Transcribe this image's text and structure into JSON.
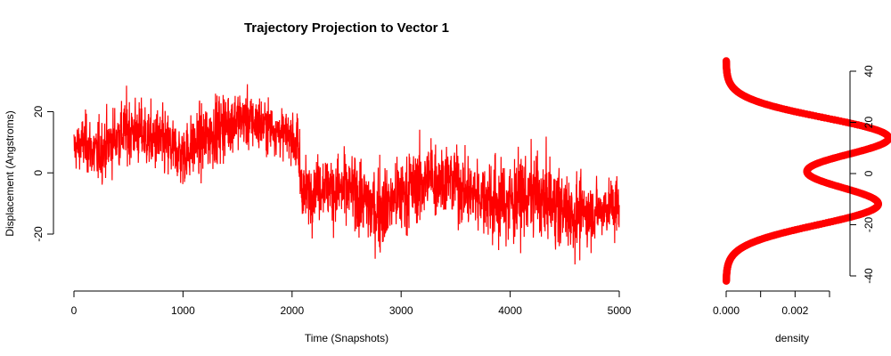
{
  "chart_data": [
    {
      "type": "line",
      "title": "Trajectory Projection to Vector 1",
      "xlabel": "Time (Snapshots)",
      "ylabel": "Displacement (Angstroms)",
      "xlim": [
        0,
        5000
      ],
      "ylim": [
        -36,
        37
      ],
      "xticks": [
        0,
        1000,
        2000,
        3000,
        4000,
        5000
      ],
      "xtick_labels": [
        "0",
        "1000",
        "2000",
        "3000",
        "4000",
        "5000"
      ],
      "yticks": [
        -20,
        0,
        20
      ],
      "ytick_labels": [
        "-20",
        "0",
        "20"
      ],
      "grid": false,
      "legend": "none",
      "color": "#ff0000",
      "series": [
        {
          "x": [
            0,
            100,
            200,
            300,
            400,
            500,
            600,
            700,
            800,
            900,
            1000,
            1100,
            1200,
            1300,
            1400,
            1500,
            1600,
            1700,
            1800,
            1900,
            2000,
            2050,
            2100,
            2200,
            2300,
            2400,
            2500,
            2600,
            2700,
            2800,
            2900,
            3000,
            3100,
            3200,
            3300,
            3400,
            3500,
            3600,
            3700,
            3800,
            3900,
            4000,
            4100,
            4200,
            4300,
            4400,
            4500,
            4600,
            4700,
            4800,
            4900,
            5000
          ],
          "y": [
            8,
            10,
            6,
            9,
            12,
            14,
            13,
            11,
            10,
            8,
            6,
            9,
            11,
            14,
            16,
            18,
            17,
            16,
            15,
            13,
            12,
            8,
            -7,
            -5,
            -4,
            -6,
            -5,
            -7,
            -10,
            -12,
            -9,
            -7,
            -5,
            -3,
            -1,
            -2,
            -3,
            -6,
            -7,
            -8,
            -10,
            -9,
            -8,
            -7,
            -9,
            -10,
            -12,
            -14,
            -13,
            -12,
            -11,
            -11
          ],
          "envelope_min": [
            -3,
            -8,
            -12,
            -8,
            -5,
            -5,
            -7,
            -10,
            -12,
            -10,
            -8,
            -9,
            -10,
            -6,
            -3,
            0,
            3,
            1,
            0,
            0,
            2,
            -17,
            -24,
            -22,
            -24,
            -26,
            -28,
            -30,
            -31,
            -33,
            -32,
            -30,
            -28,
            -27,
            -29,
            -26,
            -28,
            -29,
            -30,
            -32,
            -35,
            -33,
            -32,
            -30,
            -31,
            -31,
            -33,
            -35,
            -34,
            -31,
            -30,
            -29
          ],
          "envelope_max": [
            22,
            25,
            24,
            28,
            33,
            35,
            31,
            28,
            29,
            27,
            30,
            28,
            31,
            35,
            37,
            33,
            37,
            35,
            29,
            28,
            27,
            25,
            14,
            15,
            12,
            18,
            15,
            16,
            14,
            17,
            14,
            22,
            17,
            18,
            17,
            15,
            14,
            14,
            15,
            13,
            18,
            17,
            14,
            23,
            15,
            13,
            12,
            10,
            6,
            4,
            5,
            8
          ]
        }
      ]
    },
    {
      "type": "scatter",
      "xlabel": "density",
      "ylabel": "",
      "xlim": [
        0,
        0.0035
      ],
      "ylim": [
        -42,
        45
      ],
      "xticks": [
        0,
        0.001,
        0.002,
        0.003
      ],
      "xtick_labels": [
        "0.000",
        "",
        "0.002",
        ""
      ],
      "yticks": [
        -40,
        -20,
        0,
        20,
        40
      ],
      "ytick_labels": [
        "-40",
        "-20",
        "0",
        "20",
        "40"
      ],
      "y_axis_side": "right",
      "grid": false,
      "legend": "none",
      "color": "#ff0000",
      "components": [
        {
          "weight": 0.49,
          "mean": -12,
          "sd": 8
        },
        {
          "weight": 0.51,
          "mean": 14,
          "sd": 7.8
        }
      ],
      "y_range": [
        -42,
        44
      ]
    }
  ]
}
